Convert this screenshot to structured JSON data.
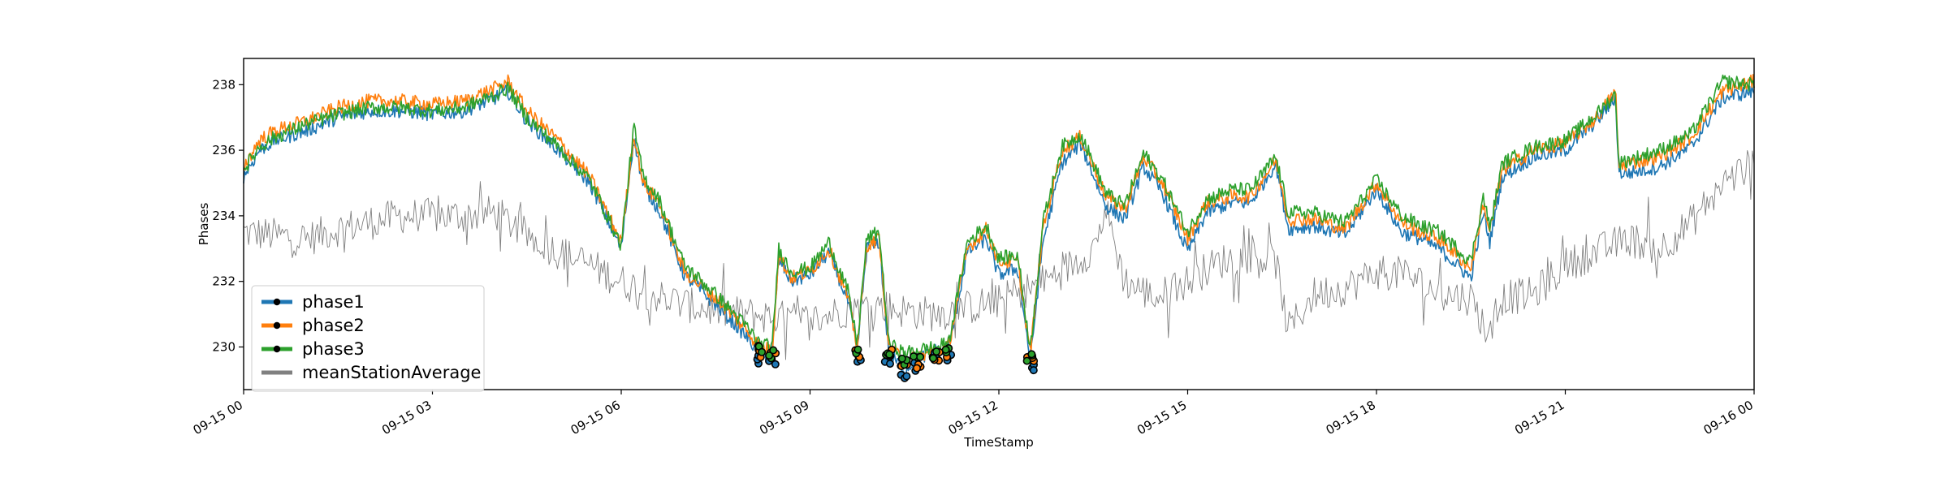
{
  "chart_data": {
    "type": "line",
    "title": "",
    "xlabel": "TimeStamp",
    "ylabel": "Phases",
    "x_range": [
      "09-15 00",
      "09-16 00"
    ],
    "ylim": [
      228.7,
      238.8
    ],
    "x_ticks": [
      {
        "hour": 0,
        "label": "09-15 00"
      },
      {
        "hour": 3,
        "label": "09-15 03"
      },
      {
        "hour": 6,
        "label": "09-15 06"
      },
      {
        "hour": 9,
        "label": "09-15 09"
      },
      {
        "hour": 12,
        "label": "09-15 12"
      },
      {
        "hour": 15,
        "label": "09-15 15"
      },
      {
        "hour": 18,
        "label": "09-15 18"
      },
      {
        "hour": 21,
        "label": "09-15 21"
      },
      {
        "hour": 24,
        "label": "09-16 00"
      }
    ],
    "y_ticks": [
      230,
      232,
      234,
      236,
      238
    ],
    "grid": false,
    "legend_position": "lower-left",
    "series": [
      {
        "name": "phase1",
        "color": "#1f77b4",
        "marker": "dot",
        "x": [
          0,
          0.25,
          0.5,
          1,
          1.5,
          2,
          2.5,
          3,
          3.5,
          4,
          4.2,
          4.5,
          5,
          5.5,
          6,
          6.2,
          6.35,
          6.6,
          7,
          7.5,
          8,
          8.2,
          8.4,
          8.5,
          8.7,
          9,
          9.3,
          9.6,
          9.75,
          9.9,
          10.1,
          10.25,
          10.5,
          10.7,
          11,
          11.2,
          11.5,
          11.8,
          12,
          12.3,
          12.5,
          12.7,
          13,
          13.3,
          13.7,
          14,
          14.3,
          14.6,
          15,
          15.3,
          15.7,
          16,
          16.4,
          16.6,
          17,
          17.5,
          18,
          18.4,
          18.7,
          19,
          19.5,
          19.7,
          19.8,
          20,
          20.5,
          21,
          21.5,
          21.8,
          21.85,
          22,
          22.5,
          23,
          23.5,
          24
        ],
        "y": [
          235.2,
          236.0,
          236.3,
          236.6,
          237.0,
          237.2,
          237.2,
          237.1,
          237.2,
          237.6,
          237.8,
          236.9,
          236.0,
          235.0,
          233.0,
          236.4,
          234.9,
          234.2,
          232.2,
          231.3,
          230.3,
          229.8,
          229.8,
          232.7,
          232.0,
          232.2,
          232.9,
          231.4,
          229.9,
          233.0,
          233.2,
          229.8,
          229.3,
          229.6,
          229.9,
          229.9,
          232.9,
          233.3,
          232.2,
          232.4,
          229.6,
          233.2,
          235.6,
          236.2,
          234.3,
          233.9,
          235.5,
          234.7,
          232.9,
          234.1,
          234.4,
          234.4,
          235.6,
          233.6,
          233.7,
          233.4,
          234.8,
          233.5,
          233.3,
          233.0,
          232.1,
          234.1,
          233.2,
          235.2,
          235.8,
          236.0,
          236.9,
          237.6,
          235.3,
          235.3,
          235.5,
          236.1,
          237.6,
          237.8
        ]
      },
      {
        "name": "phase2",
        "color": "#ff7f0e",
        "marker": "dot",
        "x": [
          0,
          0.25,
          0.5,
          1,
          1.5,
          2,
          2.5,
          3,
          3.5,
          4,
          4.2,
          4.5,
          5,
          5.5,
          6,
          6.2,
          6.35,
          6.6,
          7,
          7.5,
          8,
          8.2,
          8.4,
          8.5,
          8.7,
          9,
          9.3,
          9.6,
          9.75,
          9.9,
          10.1,
          10.25,
          10.5,
          10.7,
          11,
          11.2,
          11.5,
          11.8,
          12,
          12.3,
          12.5,
          12.7,
          13,
          13.3,
          13.7,
          14,
          14.3,
          14.6,
          15,
          15.3,
          15.7,
          16,
          16.4,
          16.6,
          17,
          17.5,
          18,
          18.4,
          18.7,
          19,
          19.5,
          19.7,
          19.8,
          20,
          20.5,
          21,
          21.5,
          21.8,
          21.85,
          22,
          22.5,
          23,
          23.5,
          24
        ],
        "y": [
          235.5,
          236.3,
          236.6,
          236.9,
          237.3,
          237.5,
          237.5,
          237.4,
          237.5,
          237.9,
          238.1,
          237.2,
          236.3,
          235.2,
          233.2,
          236.5,
          235.0,
          234.4,
          232.3,
          231.5,
          230.5,
          230.0,
          229.9,
          232.8,
          232.1,
          232.3,
          233.0,
          231.5,
          230.0,
          233.1,
          233.3,
          230.0,
          229.6,
          229.7,
          229.9,
          230.0,
          233.0,
          233.6,
          232.6,
          232.6,
          229.8,
          233.6,
          236.0,
          236.4,
          234.6,
          234.2,
          235.8,
          235.0,
          233.3,
          234.4,
          234.6,
          234.6,
          235.7,
          233.9,
          233.9,
          233.6,
          235.0,
          233.8,
          233.5,
          233.3,
          232.4,
          234.4,
          233.5,
          235.4,
          236.0,
          236.2,
          237.0,
          237.8,
          235.5,
          235.6,
          235.8,
          236.4,
          237.8,
          238.1
        ]
      },
      {
        "name": "phase3",
        "color": "#2ca02c",
        "marker": "dot",
        "x": [
          0,
          0.25,
          0.5,
          1,
          1.5,
          2,
          2.5,
          3,
          3.5,
          4,
          4.2,
          4.5,
          5,
          5.5,
          6,
          6.2,
          6.35,
          6.6,
          7,
          7.5,
          8,
          8.2,
          8.4,
          8.5,
          8.7,
          9,
          9.3,
          9.6,
          9.75,
          9.9,
          10.1,
          10.25,
          10.5,
          10.7,
          11,
          11.2,
          11.5,
          11.8,
          12,
          12.3,
          12.5,
          12.7,
          13,
          13.3,
          13.7,
          14,
          14.3,
          14.6,
          15,
          15.3,
          15.7,
          16,
          16.4,
          16.6,
          17,
          17.5,
          18,
          18.4,
          18.7,
          19,
          19.5,
          19.7,
          19.8,
          20,
          20.5,
          21,
          21.5,
          21.8,
          21.85,
          22,
          22.5,
          23,
          23.5,
          24
        ],
        "y": [
          235.4,
          236.1,
          236.4,
          236.8,
          237.1,
          237.3,
          237.3,
          237.2,
          237.3,
          237.7,
          237.9,
          237.0,
          236.1,
          235.1,
          233.1,
          236.7,
          235.2,
          234.5,
          232.5,
          231.6,
          230.6,
          230.1,
          230.0,
          233.0,
          232.3,
          232.4,
          233.2,
          231.7,
          230.1,
          233.3,
          233.5,
          230.1,
          229.8,
          229.9,
          230.0,
          230.1,
          233.2,
          233.7,
          232.7,
          232.8,
          229.9,
          233.8,
          236.1,
          236.5,
          234.7,
          234.3,
          235.9,
          235.1,
          233.5,
          234.5,
          234.8,
          234.8,
          235.8,
          234.1,
          234.1,
          233.8,
          235.1,
          234.0,
          233.7,
          233.5,
          232.6,
          234.6,
          233.6,
          235.6,
          236.1,
          236.3,
          237.1,
          237.7,
          235.6,
          235.7,
          236.0,
          236.5,
          238.1,
          238.0
        ]
      },
      {
        "name": "meanStationAverage",
        "color": "#808080",
        "marker": "none",
        "x": [
          0,
          0.5,
          1,
          1.5,
          2,
          2.5,
          3,
          3.5,
          4,
          4.5,
          5,
          5.5,
          6,
          6.5,
          7,
          7.5,
          8,
          8.5,
          9,
          9.5,
          10,
          10.5,
          11,
          11.5,
          12,
          12.5,
          13,
          13.5,
          13.7,
          14,
          14.5,
          15,
          15.5,
          16,
          16.4,
          16.6,
          17,
          17.5,
          18,
          18.5,
          19,
          19.5,
          19.8,
          20,
          20.5,
          21,
          21.5,
          22,
          22.5,
          23,
          23.5,
          24
        ],
        "y": [
          233.5,
          233.4,
          233.3,
          233.6,
          233.8,
          234.0,
          234.0,
          234.0,
          234.1,
          233.4,
          232.9,
          232.5,
          232.0,
          231.6,
          231.3,
          231.1,
          231.0,
          230.9,
          230.8,
          231.1,
          231.3,
          231.1,
          231.0,
          231.2,
          231.4,
          231.8,
          232.3,
          233.0,
          234.2,
          232.0,
          231.5,
          232.0,
          232.6,
          232.8,
          232.6,
          230.5,
          231.6,
          231.8,
          232.3,
          232.2,
          231.6,
          231.5,
          230.3,
          231.5,
          231.6,
          232.5,
          232.9,
          233.3,
          233.0,
          233.8,
          235.0,
          235.6
        ]
      }
    ]
  }
}
